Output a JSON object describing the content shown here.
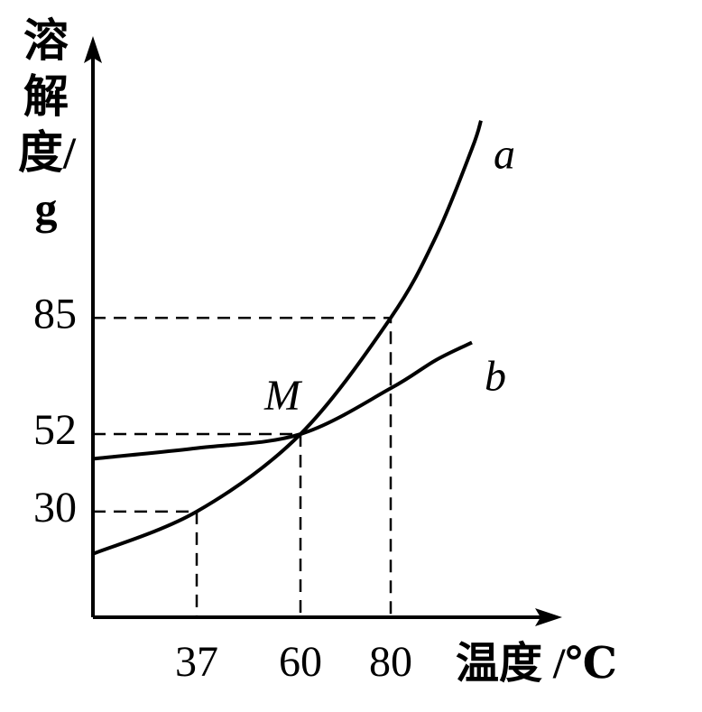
{
  "chart_data": {
    "type": "line",
    "y_label": "溶解度/g",
    "x_label": "温度 /℃",
    "annotation": "M",
    "x": [
      14,
      37,
      60,
      80,
      90,
      98,
      100
    ],
    "series": [
      {
        "name": "a",
        "color": "#000000",
        "values": [
          18,
          30,
          52,
          85,
          108,
          133,
          141
        ]
      },
      {
        "name": "b",
        "color": "#000000",
        "values": [
          45,
          48,
          52,
          65,
          73,
          78,
          null
        ]
      }
    ],
    "xlim": [
      14,
      118
    ],
    "ylim": [
      0,
      165
    ],
    "xticks": [
      37,
      60,
      80
    ],
    "yticks": [
      30,
      52,
      85
    ]
  }
}
